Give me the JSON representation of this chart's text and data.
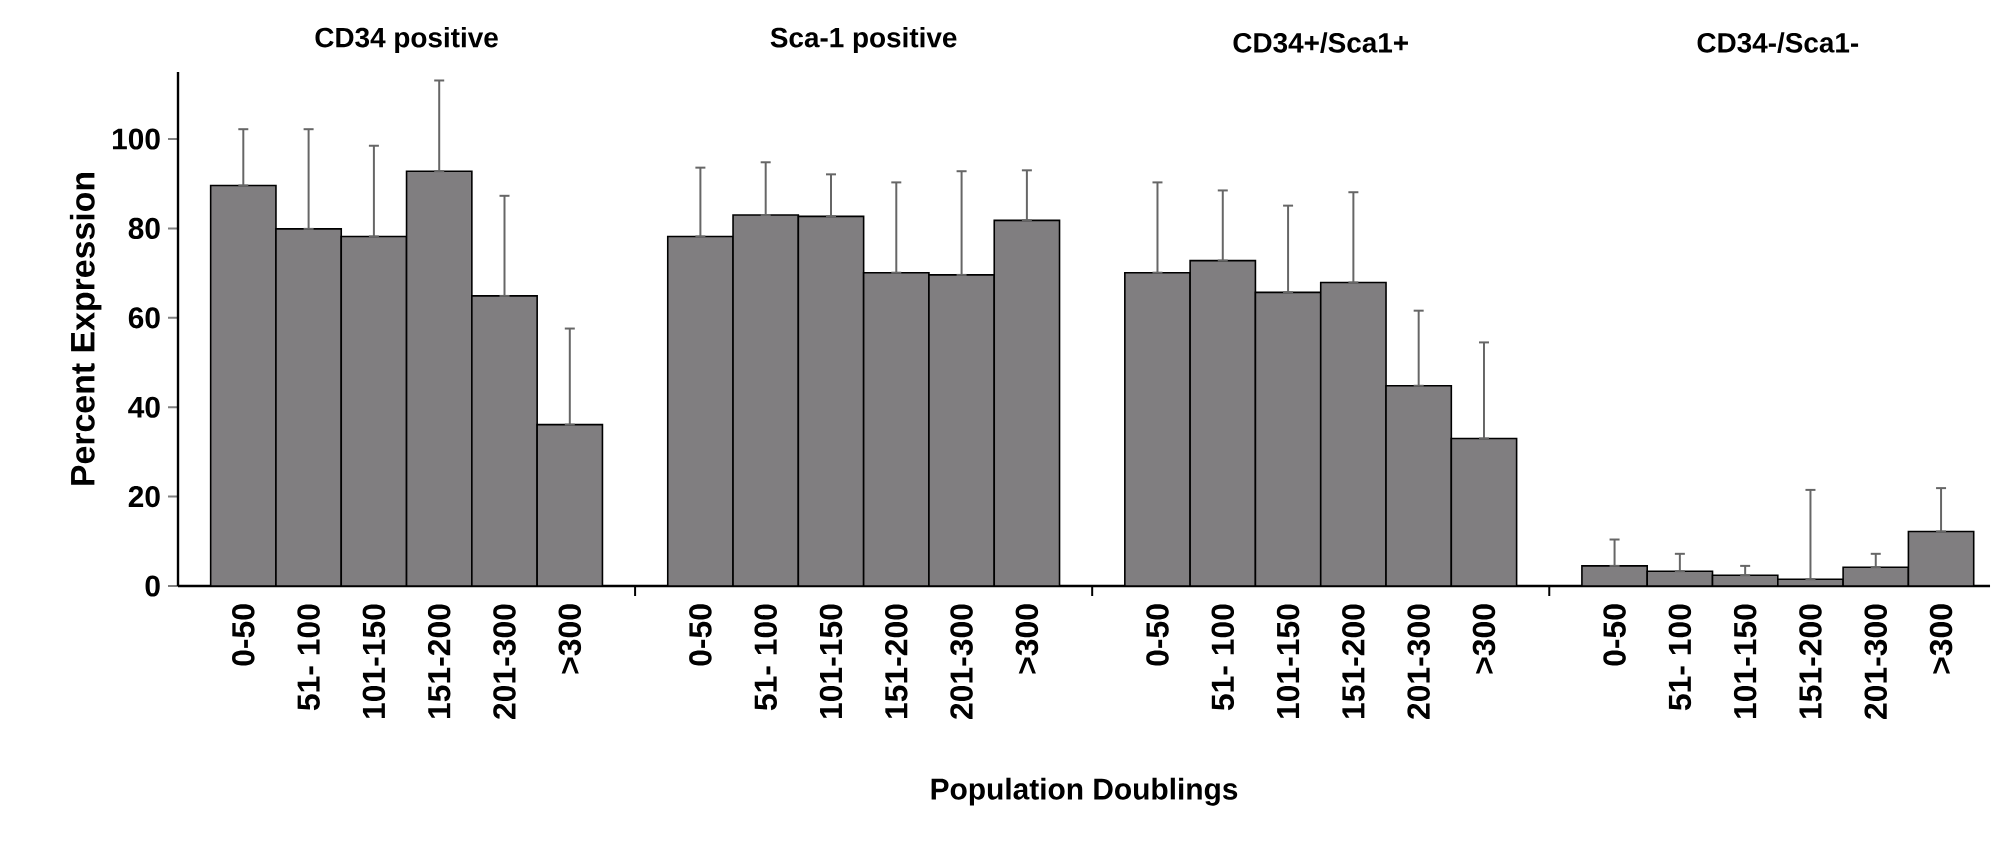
{
  "chart_data": {
    "type": "bar",
    "categories": [
      "0-50",
      "51- 100",
      "101-150",
      "151-200",
      "201-300",
      ">300",
      null,
      "0-50",
      "51- 100",
      "101-150",
      "151-200",
      "201-300",
      ">300",
      null,
      "0-50",
      "51- 100",
      "101-150",
      "151-200",
      "201-300",
      ">300",
      null,
      "0-50",
      "51- 100",
      "101-150",
      "151-200",
      "201-300",
      ">300"
    ],
    "values": [
      89.6,
      79.9,
      78.2,
      92.8,
      64.9,
      36.1,
      null,
      78.2,
      83,
      82.7,
      70.1,
      69.6,
      81.8,
      null,
      70.1,
      72.8,
      65.7,
      67.9,
      44.8,
      33,
      null,
      4.5,
      3.3,
      2.4,
      1.5,
      4.2,
      12.2
    ],
    "errors": [
      [
        89.6,
        102.2
      ],
      [
        79.9,
        102.2
      ],
      [
        78.2,
        98.5
      ],
      [
        92.8,
        113.1
      ],
      [
        64.9,
        87.3
      ],
      [
        36.1,
        57.6
      ],
      null,
      [
        78.2,
        93.6
      ],
      [
        83,
        94.8
      ],
      [
        82.7,
        92.1
      ],
      [
        70.1,
        90.3
      ],
      [
        69.6,
        92.8
      ],
      [
        81.8,
        93.0
      ],
      null,
      [
        70.1,
        90.3
      ],
      [
        72.8,
        88.5
      ],
      [
        65.7,
        85.1
      ],
      [
        67.9,
        88.1
      ],
      [
        44.8,
        61.6
      ],
      [
        33,
        54.5
      ],
      null,
      [
        4.5,
        10.4
      ],
      [
        3.3,
        7.2
      ],
      [
        2.4,
        4.5
      ],
      [
        1.5,
        21.5
      ],
      [
        4.2,
        7.2
      ],
      [
        12.2,
        21.9
      ]
    ],
    "color": "#807e80",
    "ylim": [
      0,
      115
    ],
    "yticks": [
      0,
      20,
      40,
      60,
      80,
      100
    ],
    "xlabel": "Population Doublings",
    "ylabel": "Percent Expression",
    "annotations": [
      "CD34 positive",
      "Sca-1 positive",
      "CD34+/Sca1+",
      "CD34-/Sca1-"
    ]
  }
}
